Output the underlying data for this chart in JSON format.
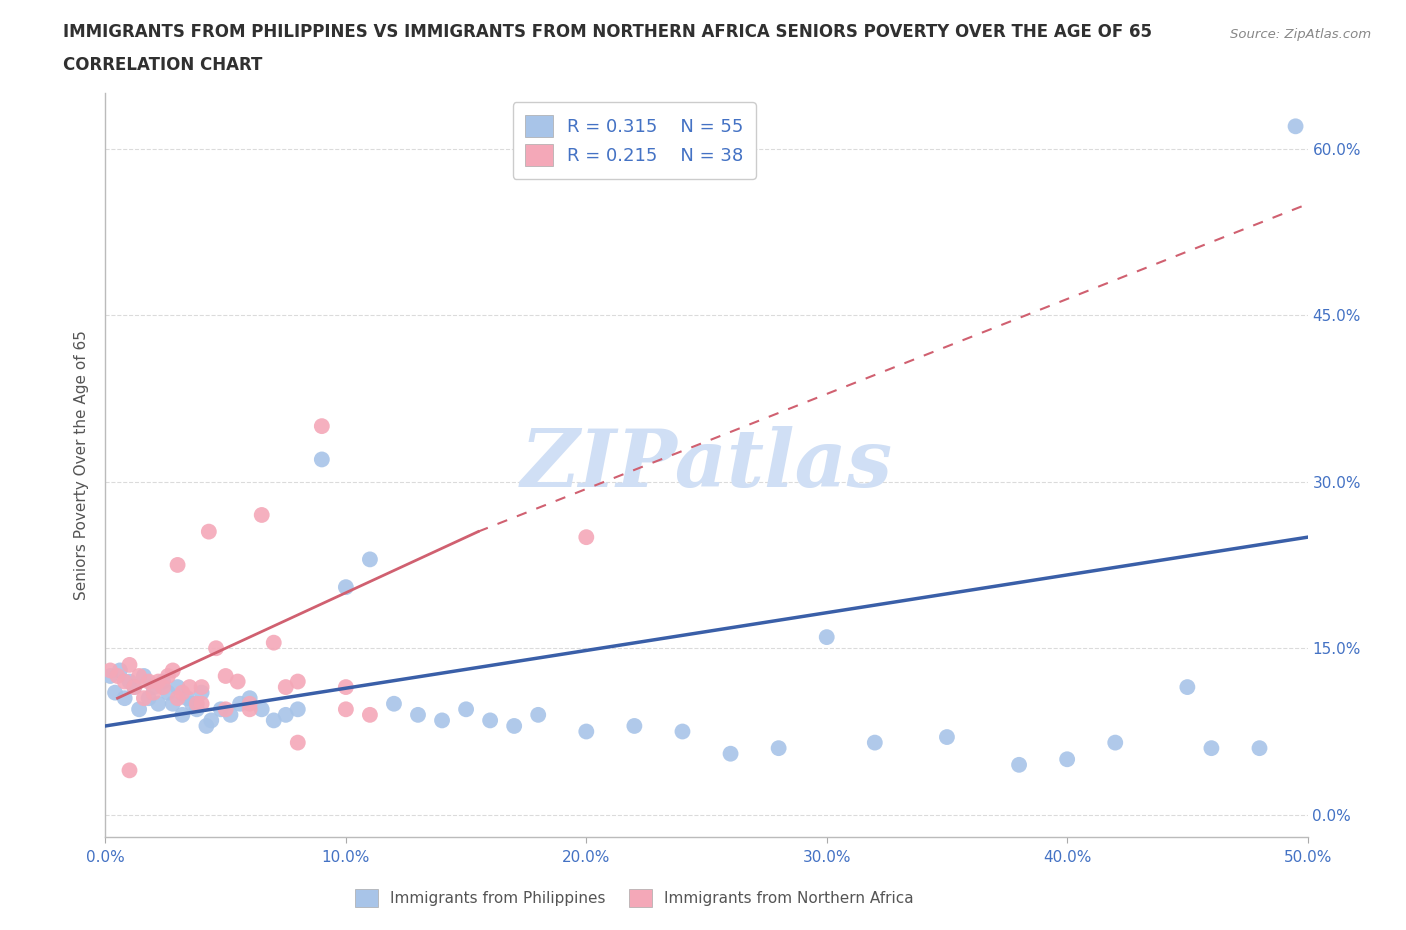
{
  "title_line1": "IMMIGRANTS FROM PHILIPPINES VS IMMIGRANTS FROM NORTHERN AFRICA SENIORS POVERTY OVER THE AGE OF 65",
  "title_line2": "CORRELATION CHART",
  "source_text": "Source: ZipAtlas.com",
  "ylabel": "Seniors Poverty Over the Age of 65",
  "xlim": [
    0.0,
    0.5
  ],
  "ylim": [
    -0.02,
    0.65
  ],
  "xticks": [
    0.0,
    0.1,
    0.2,
    0.3,
    0.4,
    0.5
  ],
  "xtick_labels": [
    "0.0%",
    "10.0%",
    "20.0%",
    "30.0%",
    "40.0%",
    "50.0%"
  ],
  "yticks": [
    0.0,
    0.15,
    0.3,
    0.45,
    0.6
  ],
  "ytick_labels_right": [
    "0.0%",
    "15.0%",
    "30.0%",
    "45.0%",
    "60.0%"
  ],
  "philippines_R": 0.315,
  "philippines_N": 55,
  "northern_africa_R": 0.215,
  "northern_africa_N": 38,
  "philippines_color": "#a8c4e8",
  "northern_africa_color": "#f4a8b8",
  "philippines_line_color": "#3a5fa8",
  "northern_africa_line_color": "#d06070",
  "watermark": "ZIPatlas",
  "watermark_color": "#d0dff5",
  "legend_label_philippines": "Immigrants from Philippines",
  "legend_label_northern_africa": "Immigrants from Northern Africa",
  "philippines_x": [
    0.002,
    0.004,
    0.006,
    0.008,
    0.01,
    0.012,
    0.014,
    0.016,
    0.018,
    0.02,
    0.022,
    0.024,
    0.026,
    0.028,
    0.03,
    0.032,
    0.034,
    0.036,
    0.038,
    0.04,
    0.042,
    0.044,
    0.048,
    0.052,
    0.056,
    0.06,
    0.065,
    0.07,
    0.075,
    0.08,
    0.09,
    0.1,
    0.11,
    0.12,
    0.13,
    0.14,
    0.15,
    0.16,
    0.17,
    0.18,
    0.2,
    0.22,
    0.24,
    0.26,
    0.28,
    0.3,
    0.32,
    0.35,
    0.38,
    0.4,
    0.42,
    0.45,
    0.46,
    0.48,
    0.495
  ],
  "philippines_y": [
    0.125,
    0.11,
    0.13,
    0.105,
    0.12,
    0.115,
    0.095,
    0.125,
    0.105,
    0.115,
    0.1,
    0.12,
    0.11,
    0.1,
    0.115,
    0.09,
    0.105,
    0.1,
    0.095,
    0.11,
    0.08,
    0.085,
    0.095,
    0.09,
    0.1,
    0.105,
    0.095,
    0.085,
    0.09,
    0.095,
    0.32,
    0.205,
    0.23,
    0.1,
    0.09,
    0.085,
    0.095,
    0.085,
    0.08,
    0.09,
    0.075,
    0.08,
    0.075,
    0.055,
    0.06,
    0.16,
    0.065,
    0.07,
    0.045,
    0.05,
    0.065,
    0.115,
    0.06,
    0.06,
    0.62
  ],
  "northern_africa_x": [
    0.002,
    0.005,
    0.008,
    0.01,
    0.012,
    0.014,
    0.016,
    0.018,
    0.02,
    0.022,
    0.024,
    0.026,
    0.028,
    0.03,
    0.032,
    0.035,
    0.038,
    0.04,
    0.043,
    0.046,
    0.05,
    0.055,
    0.06,
    0.065,
    0.07,
    0.075,
    0.08,
    0.09,
    0.1,
    0.11,
    0.03,
    0.04,
    0.05,
    0.06,
    0.08,
    0.1,
    0.2,
    0.01
  ],
  "northern_africa_y": [
    0.13,
    0.125,
    0.12,
    0.135,
    0.115,
    0.125,
    0.105,
    0.12,
    0.11,
    0.12,
    0.115,
    0.125,
    0.13,
    0.105,
    0.11,
    0.115,
    0.1,
    0.115,
    0.255,
    0.15,
    0.125,
    0.12,
    0.1,
    0.27,
    0.155,
    0.115,
    0.12,
    0.35,
    0.115,
    0.09,
    0.225,
    0.1,
    0.095,
    0.095,
    0.065,
    0.095,
    0.25,
    0.04
  ],
  "background_color": "#ffffff",
  "grid_color": "#cccccc",
  "title_color": "#303030",
  "axis_label_color": "#555555",
  "tick_color_blue": "#4472c4",
  "source_color": "#888888"
}
